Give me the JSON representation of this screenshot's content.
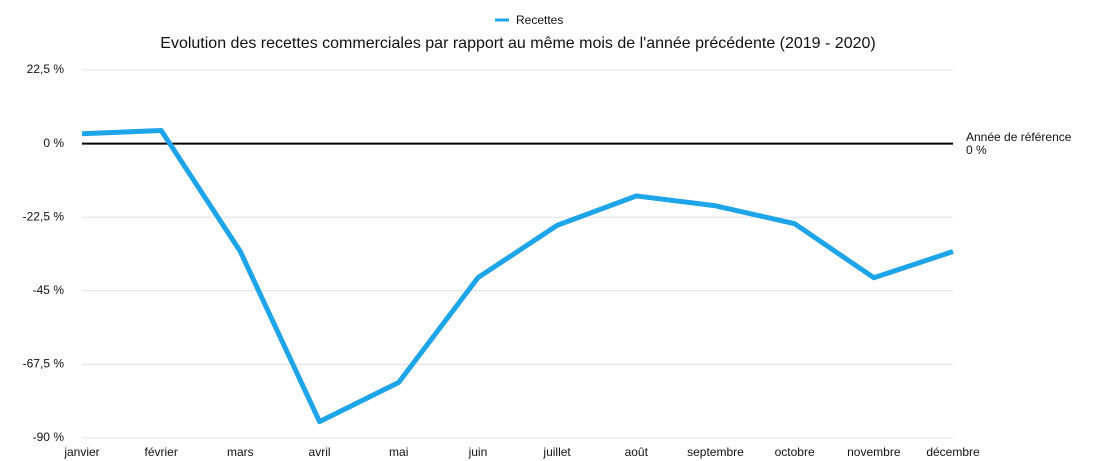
{
  "chart_data": {
    "type": "line",
    "title": "Evolution des recettes commerciales par rapport au même mois de l'année précédente (2019 - 2020)",
    "categories": [
      "janvier",
      "février",
      "mars",
      "avril",
      "mai",
      "juin",
      "juillet",
      "août",
      "septembre",
      "octobre",
      "novembre",
      "décembre"
    ],
    "series": [
      {
        "name": "Recettes",
        "color": "#1ea5e9",
        "values": [
          3,
          4,
          -33,
          -85,
          -73,
          -41,
          -25,
          -16,
          -19,
          -24.5,
          -41,
          -33
        ]
      }
    ],
    "ylim": [
      -90,
      22.5
    ],
    "yticks": [
      {
        "value": -90,
        "label": "-90 %"
      },
      {
        "value": -67.5,
        "label": "-67,5 %"
      },
      {
        "value": -45,
        "label": "-45 %"
      },
      {
        "value": -22.5,
        "label": "-22,5 %"
      },
      {
        "value": 0,
        "label": "0 %"
      },
      {
        "value": 22.5,
        "label": "22,5 %"
      }
    ],
    "grid": true,
    "legend": "top",
    "reference_line": {
      "value": 0,
      "label": [
        "Année de référence",
        "0 %"
      ]
    }
  }
}
